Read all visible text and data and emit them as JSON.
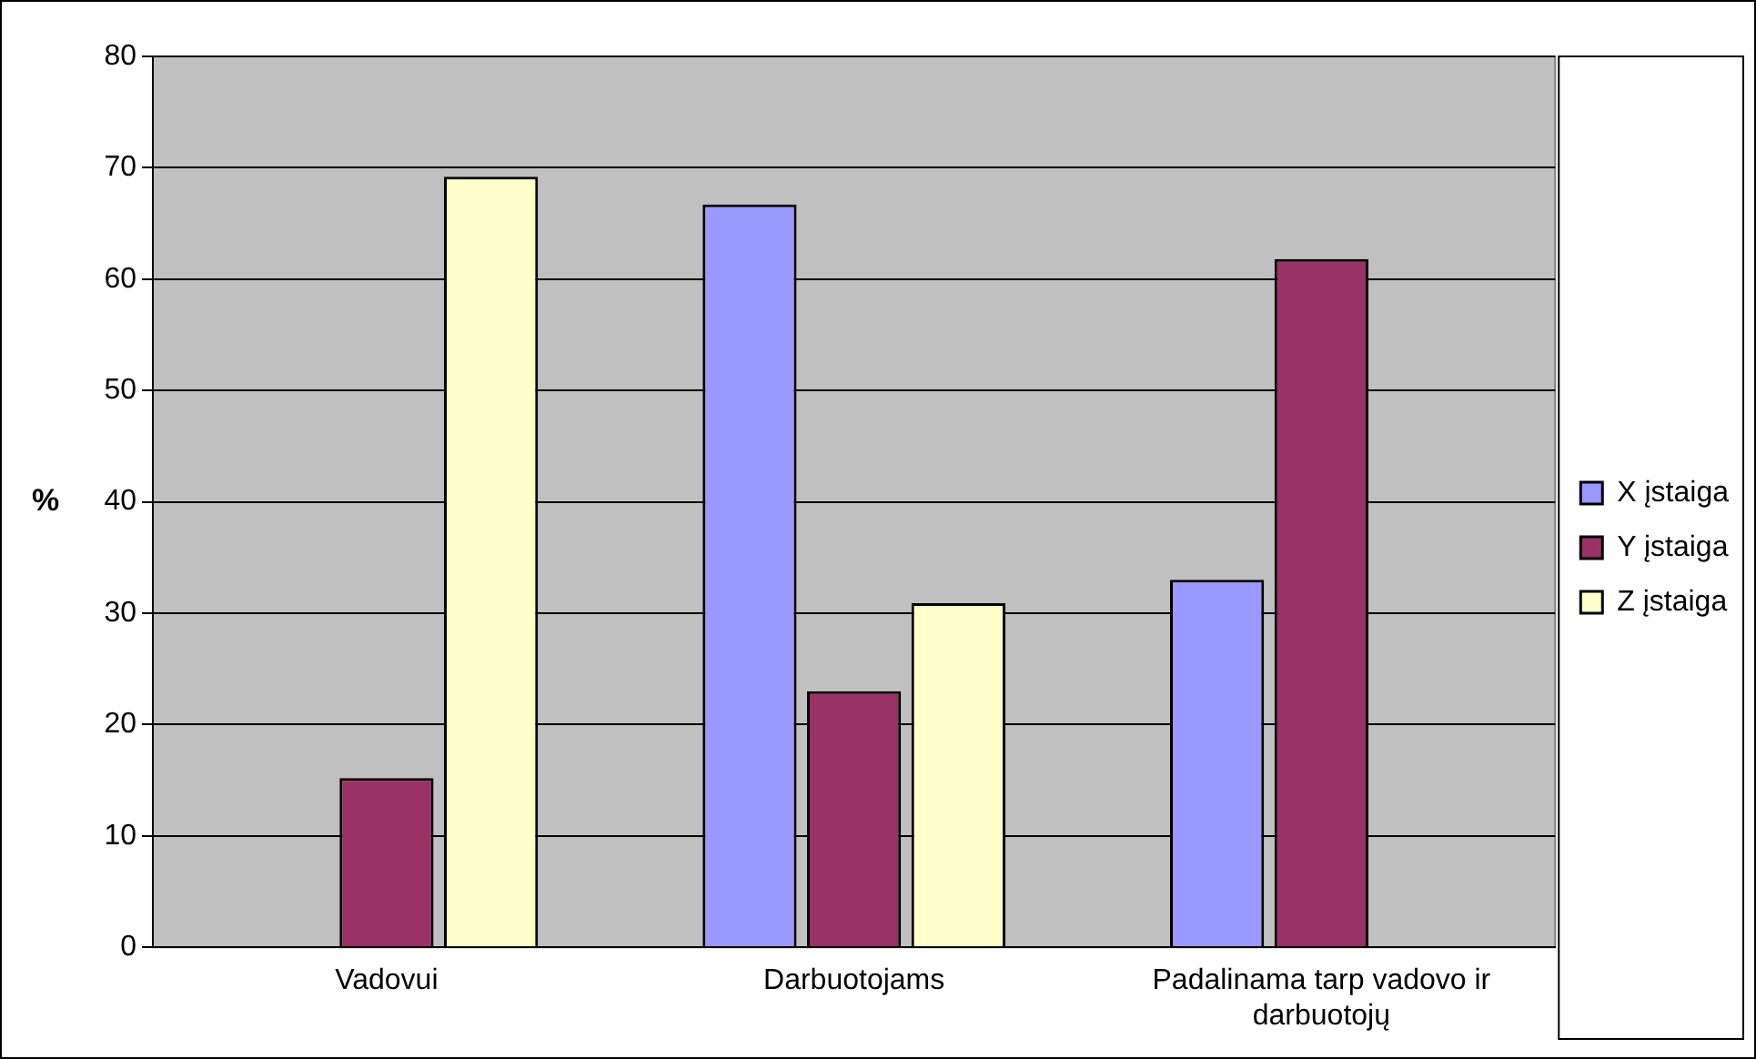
{
  "chart_data": {
    "type": "bar",
    "ylabel": "%",
    "categories": [
      "Vadovui",
      "Darbuotojams",
      "Padalinama tarp vadovo ir darbuotojų"
    ],
    "series": [
      {
        "name": "X įstaiga",
        "color": "#9999ff",
        "values": [
          null,
          66.7,
          33.0
        ]
      },
      {
        "name": "Y įstaiga",
        "color": "#993366",
        "values": [
          15.2,
          23.0,
          61.8
        ]
      },
      {
        "name": "Z įstaiga",
        "color": "#ffffcc",
        "values": [
          69.2,
          30.9,
          null
        ]
      }
    ],
    "ylim": [
      0,
      80
    ],
    "yticks": [
      0,
      10,
      20,
      30,
      40,
      50,
      60,
      70,
      80
    ],
    "grid": "y",
    "legend": "right"
  }
}
